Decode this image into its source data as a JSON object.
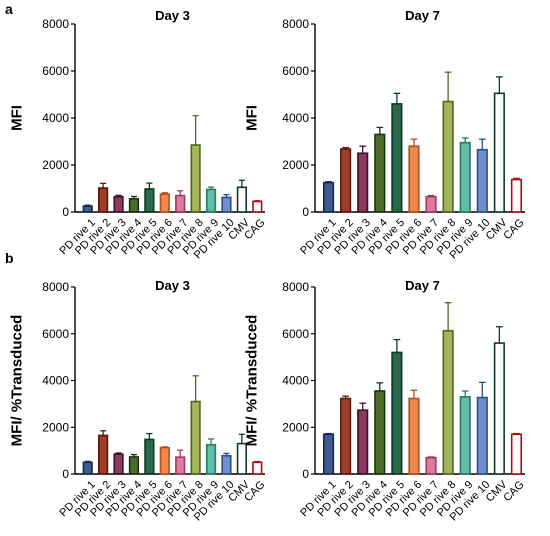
{
  "panel_labels": [
    "a",
    "b"
  ],
  "colors": {
    "PD rive 1": {
      "stroke": "#1a2a4c",
      "fill": "#3d5a93"
    },
    "PD rive 2": {
      "stroke": "#5a170e",
      "fill": "#9a3d2a"
    },
    "PD rive 3": {
      "stroke": "#3f1028",
      "fill": "#8a3a5c"
    },
    "PD rive 4": {
      "stroke": "#1d3210",
      "fill": "#4f6a2a"
    },
    "PD rive 5": {
      "stroke": "#0c3a24",
      "fill": "#2a6a4a"
    },
    "PD rive 6": {
      "stroke": "#b0501e",
      "fill": "#ec8a4e"
    },
    "PD rive 7": {
      "stroke": "#a2385e",
      "fill": "#dd7aa1"
    },
    "PD rive 8": {
      "stroke": "#536420",
      "fill": "#a3b65a"
    },
    "PD rive 9": {
      "stroke": "#2a7a66",
      "fill": "#5fbca5"
    },
    "PD rive 10": {
      "stroke": "#2f4c84",
      "fill": "#6f8fcc"
    },
    "CMV": {
      "stroke": "#0d3a26",
      "fill": "#ffffff"
    },
    "CAG": {
      "stroke": "#a80e12",
      "fill": "#ffffff"
    }
  },
  "chart_data": [
    {
      "id": "a-day3",
      "type": "bar",
      "title": "Day 3",
      "ylabel": "MFI",
      "ylim": [
        0,
        8000
      ],
      "yticks": [
        0,
        2000,
        4000,
        6000,
        8000
      ],
      "categories": [
        "PD rive 1",
        "PD rive 2",
        "PD rive 3",
        "PD rive 4",
        "PD rive 5",
        "PD rive 6",
        "PD rive 7",
        "PD rive 8",
        "PD rive 9",
        "PD rive 10",
        "CMV",
        "CAG"
      ],
      "values": [
        250,
        1020,
        650,
        560,
        980,
        760,
        700,
        2850,
        960,
        620,
        1050,
        450
      ],
      "errors": [
        40,
        200,
        60,
        100,
        250,
        60,
        200,
        1250,
        100,
        120,
        300,
        30
      ]
    },
    {
      "id": "a-day7",
      "type": "bar",
      "title": "Day 7",
      "ylabel": "MFI",
      "ylim": [
        0,
        8000
      ],
      "yticks": [
        0,
        2000,
        4000,
        6000,
        8000
      ],
      "categories": [
        "PD rive 1",
        "PD rive 2",
        "PD rive 3",
        "PD rive 4",
        "PD rive 5",
        "PD rive 6",
        "PD rive 7",
        "PD rive 8",
        "PD rive 9",
        "PD rive 10",
        "CMV",
        "CAG"
      ],
      "values": [
        1250,
        2680,
        2500,
        3300,
        4600,
        2800,
        650,
        4700,
        2950,
        2650,
        5050,
        1380
      ],
      "errors": [
        40,
        60,
        300,
        300,
        450,
        300,
        50,
        1250,
        200,
        450,
        700,
        50
      ]
    },
    {
      "id": "b-day3",
      "type": "bar",
      "title": "Day 3",
      "ylabel": "MFI/ %Transduced",
      "ylim": [
        0,
        8000
      ],
      "yticks": [
        0,
        2000,
        4000,
        6000,
        8000
      ],
      "categories": [
        "PD rive 1",
        "PD rive 2",
        "PD rive 3",
        "PD rive 4",
        "PD rive 5",
        "PD rive 6",
        "PD rive 7",
        "PD rive 8",
        "PD rive 9",
        "PD rive 10",
        "CMV",
        "CAG"
      ],
      "values": [
        500,
        1650,
        850,
        730,
        1480,
        1130,
        720,
        3100,
        1250,
        780,
        1300,
        500
      ],
      "errors": [
        40,
        200,
        50,
        100,
        250,
        30,
        300,
        1100,
        250,
        100,
        400,
        30
      ]
    },
    {
      "id": "b-day7",
      "type": "bar",
      "title": "Day 7",
      "ylabel": "MFI/ %Transduced",
      "ylim": [
        0,
        8000
      ],
      "yticks": [
        0,
        2000,
        4000,
        6000,
        8000
      ],
      "categories": [
        "PD rive 1",
        "PD rive 2",
        "PD rive 3",
        "PD rive 4",
        "PD rive 5",
        "PD rive 6",
        "PD rive 7",
        "PD rive 8",
        "PD rive 9",
        "PD rive 10",
        "CMV",
        "CAG"
      ],
      "values": [
        1700,
        3230,
        2730,
        3550,
        5200,
        3230,
        700,
        6130,
        3300,
        3270,
        5600,
        1700
      ],
      "errors": [
        30,
        100,
        300,
        350,
        550,
        350,
        30,
        1200,
        250,
        650,
        700,
        30
      ]
    }
  ]
}
